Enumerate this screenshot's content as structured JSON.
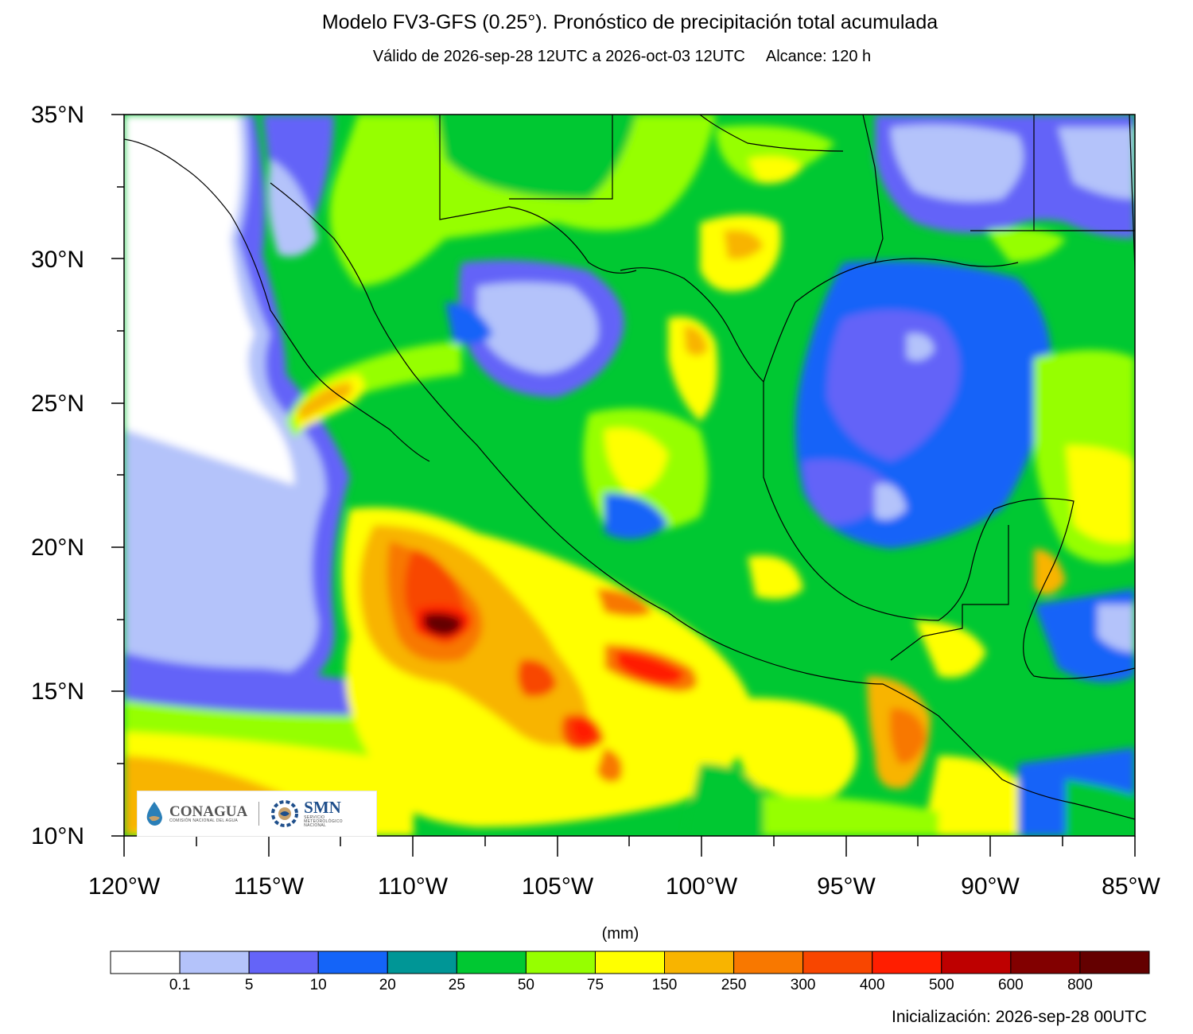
{
  "title": "Modelo FV3-GFS (0.25°). Pronóstico de precipitación total acumulada",
  "subtitle": {
    "valid": "Válido de 2026-sep-28 12UTC a 2026-oct-03 12UTC",
    "lead": "Alcance: 120 h"
  },
  "map": {
    "lon_range": [
      -120,
      -85
    ],
    "lat_range": [
      10,
      35
    ],
    "lat_labels": [
      "35°N",
      "30°N",
      "25°N",
      "20°N",
      "15°N",
      "10°N"
    ],
    "lon_labels": [
      "120°W",
      "115°W",
      "110°W",
      "105°W",
      "100°W",
      "95°W",
      "90°W",
      "85°W"
    ]
  },
  "colorbar": {
    "units": "(mm)",
    "labels": [
      "0.1",
      "5",
      "10",
      "20",
      "25",
      "50",
      "75",
      "150",
      "250",
      "300",
      "400",
      "500",
      "600",
      "800"
    ],
    "colors": [
      "#ffffff",
      "#b4c3fa",
      "#6464f8",
      "#1464f8",
      "#009696",
      "#00c832",
      "#96ff00",
      "#ffff00",
      "#f8b400",
      "#f87800",
      "#f84600",
      "#ff1e00",
      "#be0000",
      "#820000",
      "#640000"
    ]
  },
  "logos": {
    "conagua": "CONAGUA",
    "conagua_sub": "COMISIÓN NACIONAL DEL AGUA",
    "smn": "SMN",
    "smn_sub": "SERVICIO METEOROLÓGICO NACIONAL"
  },
  "footer": {
    "init": "Inicialización: 2026-sep-28 00UTC"
  }
}
